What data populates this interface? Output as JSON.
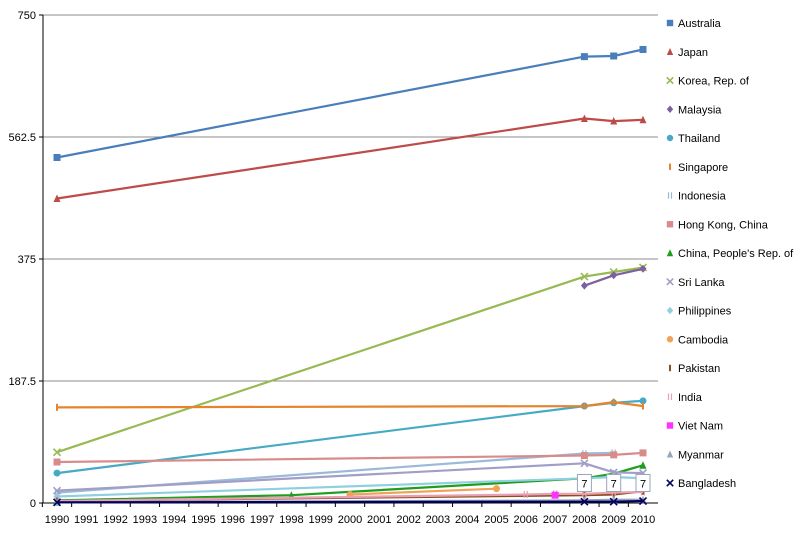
{
  "chart_data": {
    "type": "line",
    "title": "",
    "xlabel": "",
    "ylabel": "",
    "x": [
      1990,
      1991,
      1992,
      1993,
      1994,
      1995,
      1996,
      1997,
      1998,
      1999,
      2000,
      2001,
      2002,
      2003,
      2004,
      2005,
      2006,
      2007,
      2008,
      2009,
      2010
    ],
    "x_tick_labels": [
      "1990",
      "1991",
      "1992",
      "1993",
      "1994",
      "1995",
      "1996",
      "1997",
      "1998",
      "1999",
      "2000",
      "2001",
      "2002",
      "2003",
      "2004",
      "2005",
      "2006",
      "2007",
      "2008",
      "2009",
      "2010"
    ],
    "ylim": [
      0,
      750
    ],
    "y_ticks": [
      0,
      187.5,
      375,
      562.5,
      750
    ],
    "y_tick_labels": [
      "0",
      "187.5",
      "375",
      "562.5",
      "750"
    ],
    "grid": "horizontal",
    "legend_position": "right",
    "series": [
      {
        "name": "Australia",
        "color": "#4a7ebb",
        "marker": "square",
        "points": [
          [
            1990,
            531
          ],
          [
            2008,
            686
          ],
          [
            2009,
            687
          ],
          [
            2010,
            697
          ]
        ]
      },
      {
        "name": "Japan",
        "color": "#be4b48",
        "marker": "triangle",
        "points": [
          [
            1990,
            468
          ],
          [
            2008,
            591
          ],
          [
            2009,
            587
          ],
          [
            2010,
            589
          ]
        ]
      },
      {
        "name": "Korea, Rep. of",
        "color": "#98b954",
        "marker": "x",
        "points": [
          [
            1990,
            78
          ],
          [
            2008,
            348
          ],
          [
            2009,
            355
          ],
          [
            2010,
            362
          ]
        ]
      },
      {
        "name": "Malaysia",
        "color": "#7d60a0",
        "marker": "diamond",
        "points": [
          [
            2008,
            334
          ],
          [
            2009,
            350
          ],
          [
            2010,
            360
          ]
        ]
      },
      {
        "name": "Thailand",
        "color": "#46aac5",
        "marker": "circle",
        "points": [
          [
            1990,
            46
          ],
          [
            2008,
            149
          ],
          [
            2009,
            154
          ],
          [
            2010,
            157
          ]
        ]
      },
      {
        "name": "Singapore",
        "color": "#e5842e",
        "marker": "dash",
        "points": [
          [
            1990,
            147
          ],
          [
            2008,
            149
          ],
          [
            2009,
            155
          ],
          [
            2010,
            149
          ]
        ]
      },
      {
        "name": "Indonesia",
        "color": "#9bbad8",
        "marker": "bar",
        "points": [
          [
            1990,
            16
          ],
          [
            2008,
            76
          ],
          [
            2009,
            77
          ]
        ]
      },
      {
        "name": "Hong Kong, China",
        "color": "#d88c8a",
        "marker": "square",
        "points": [
          [
            1990,
            63
          ],
          [
            2008,
            73
          ],
          [
            2009,
            74
          ],
          [
            2010,
            77
          ]
        ]
      },
      {
        "name": "China, People's Rep. of",
        "color": "#1d9e1d",
        "marker": "triangle",
        "points": [
          [
            1990,
            4
          ],
          [
            1998,
            12
          ],
          [
            2008,
            38
          ],
          [
            2009,
            45
          ],
          [
            2010,
            58
          ]
        ]
      },
      {
        "name": "Sri Lanka",
        "color": "#a19fc8",
        "marker": "x",
        "points": [
          [
            1990,
            19
          ],
          [
            2008,
            61
          ],
          [
            2009,
            47
          ],
          [
            2010,
            46
          ]
        ]
      },
      {
        "name": "Philippines",
        "color": "#8fcfe0",
        "marker": "diamond",
        "points": [
          [
            1990,
            10
          ],
          [
            2008,
            38
          ],
          [
            2009,
            40
          ],
          [
            2010,
            38
          ]
        ]
      },
      {
        "name": "Cambodia",
        "color": "#f0a258",
        "marker": "circle",
        "points": [
          [
            2000,
            13
          ],
          [
            2005,
            22
          ]
        ]
      },
      {
        "name": "Pakistan",
        "color": "#8c4e1e",
        "marker": "dash",
        "points": [
          [
            1990,
            3
          ],
          [
            2008,
            12
          ],
          [
            2009,
            13
          ],
          [
            2010,
            18
          ]
        ]
      },
      {
        "name": "India",
        "color": "#e8a0b4",
        "marker": "bar",
        "points": [
          [
            1990,
            3
          ],
          [
            2006,
            13
          ],
          [
            2007,
            14
          ],
          [
            2008,
            14
          ],
          [
            2009,
            16
          ],
          [
            2010,
            17
          ]
        ]
      },
      {
        "name": "Viet Nam",
        "color": "#ff33ff",
        "marker": "square",
        "points": [
          [
            2007,
            12
          ]
        ]
      },
      {
        "name": "Myanmar",
        "color": "#9aa5b8",
        "marker": "triangle",
        "points": [
          [
            1990,
            1
          ],
          [
            2008,
            4
          ],
          [
            2009,
            5
          ],
          [
            2010,
            5
          ]
        ]
      },
      {
        "name": "Bangladesh",
        "color": "#00005e",
        "marker": "x",
        "points": [
          [
            1990,
            1
          ],
          [
            2008,
            2
          ],
          [
            2009,
            2
          ],
          [
            2010,
            3
          ]
        ]
      }
    ],
    "annotations": [
      {
        "text": "7",
        "x": 2008,
        "y": 30
      },
      {
        "text": "7",
        "x": 2009,
        "y": 30
      },
      {
        "text": "7",
        "x": 2010,
        "y": 30
      }
    ]
  }
}
